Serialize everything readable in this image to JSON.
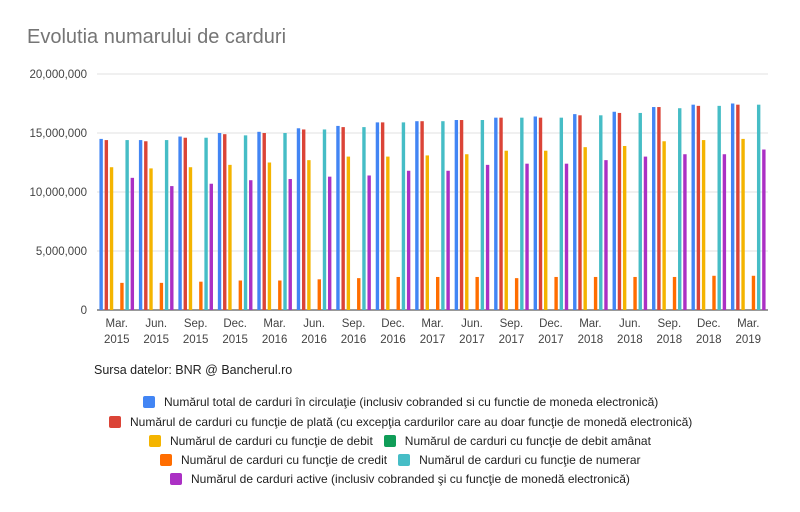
{
  "title": "Evolutia numarului de carduri",
  "source_note": "Sursa datelor: BNR @ Bancherul.ro",
  "chart_data": {
    "type": "bar",
    "title": "Evolutia numarului de carduri",
    "categories": [
      [
        "Mar.",
        "2015"
      ],
      [
        "Jun.",
        "2015"
      ],
      [
        "Sep.",
        "2015"
      ],
      [
        "Dec.",
        "2015"
      ],
      [
        "Mar.",
        "2016"
      ],
      [
        "Jun.",
        "2016"
      ],
      [
        "Sep.",
        "2016"
      ],
      [
        "Dec.",
        "2016"
      ],
      [
        "Mar.",
        "2017"
      ],
      [
        "Jun.",
        "2017"
      ],
      [
        "Sep.",
        "2017"
      ],
      [
        "Dec.",
        "2017"
      ],
      [
        "Mar.",
        "2018"
      ],
      [
        "Jun.",
        "2018"
      ],
      [
        "Sep.",
        "2018"
      ],
      [
        "Dec.",
        "2018"
      ],
      [
        "Mar.",
        "2019"
      ]
    ],
    "ylim": [
      0,
      20000000
    ],
    "yticks": [
      "0",
      "5,000,000",
      "10,000,000",
      "15,000,000",
      "20,000,000"
    ],
    "grid": true,
    "legend_position": "bottom",
    "series": [
      {
        "name": "Numărul total de carduri în circulaţie (inclusiv cobranded si cu functie de moneda electronică)",
        "color": "#4285f4",
        "values": [
          14500000,
          14400000,
          14700000,
          15000000,
          15100000,
          15400000,
          15600000,
          15900000,
          16000000,
          16100000,
          16300000,
          16400000,
          16600000,
          16800000,
          17200000,
          17400000,
          17500000
        ]
      },
      {
        "name": "Numărul de carduri cu funcţie de plată (cu excepţia cardurilor care au doar funcţie de monedă electronică)",
        "color": "#db4437",
        "values": [
          14400000,
          14300000,
          14600000,
          14900000,
          15000000,
          15300000,
          15500000,
          15900000,
          16000000,
          16100000,
          16300000,
          16300000,
          16500000,
          16700000,
          17200000,
          17300000,
          17400000
        ]
      },
      {
        "name": "Numărul de carduri cu funcţie de debit",
        "color": "#f4b400",
        "values": [
          12100000,
          12000000,
          12100000,
          12300000,
          12500000,
          12700000,
          13000000,
          13000000,
          13100000,
          13200000,
          13500000,
          13500000,
          13800000,
          13900000,
          14300000,
          14400000,
          14500000
        ]
      },
      {
        "name": "Numărul de carduri cu funcţie de debit amânat",
        "color": "#0f9d58",
        "values": [
          0,
          0,
          0,
          0,
          0,
          0,
          0,
          0,
          0,
          0,
          0,
          0,
          0,
          0,
          0,
          0,
          0
        ]
      },
      {
        "name": "Numărul de carduri cu funcţie de credit",
        "color": "#ff6d00",
        "values": [
          2300000,
          2300000,
          2400000,
          2500000,
          2500000,
          2600000,
          2700000,
          2800000,
          2800000,
          2800000,
          2700000,
          2800000,
          2800000,
          2800000,
          2800000,
          2900000,
          2900000
        ]
      },
      {
        "name": "Numărul de carduri cu funcţie de numerar",
        "color": "#46bdc6",
        "values": [
          14400000,
          14400000,
          14600000,
          14800000,
          15000000,
          15300000,
          15500000,
          15900000,
          16000000,
          16100000,
          16300000,
          16300000,
          16500000,
          16700000,
          17100000,
          17300000,
          17400000
        ]
      },
      {
        "name": "Numărul de carduri active (inclusiv cobranded şi cu funcţie de monedă electronică)",
        "color": "#ab30c4",
        "values": [
          11200000,
          10500000,
          10700000,
          11000000,
          11100000,
          11300000,
          11400000,
          11800000,
          11800000,
          12300000,
          12400000,
          12400000,
          12700000,
          13000000,
          13200000,
          13200000,
          13600000
        ]
      }
    ],
    "legend_rows": [
      [
        0
      ],
      [
        1
      ],
      [
        2,
        3
      ],
      [
        4,
        5
      ],
      [
        6
      ]
    ]
  }
}
